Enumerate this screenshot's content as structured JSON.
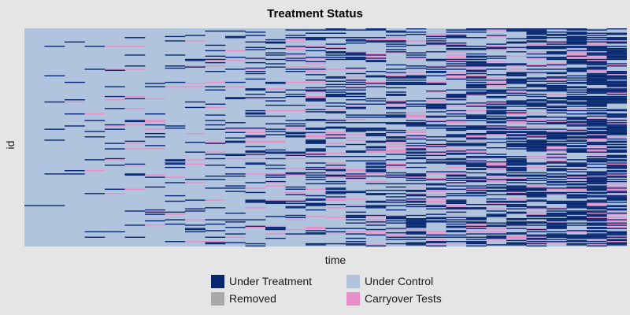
{
  "chart_data": {
    "type": "heatmap",
    "title": "Treatment Status",
    "xlabel": "time",
    "ylabel": "id",
    "n_units": 200,
    "n_periods": 30,
    "legend": {
      "placement": "bottom",
      "entries": [
        {
          "key": "treated",
          "label": "Under Treatment",
          "color": "#06266f"
        },
        {
          "key": "control",
          "label": "Under Control",
          "color": "#b0c4de"
        },
        {
          "key": "removed",
          "label": "Removed",
          "color": "#a9a9a9"
        },
        {
          "key": "carryover",
          "label": "Carryover Tests",
          "color": "#e88ec8"
        }
      ]
    },
    "grid": false,
    "pattern_note": "treatment becomes more frequent over time; carryover periods follow treatment"
  }
}
